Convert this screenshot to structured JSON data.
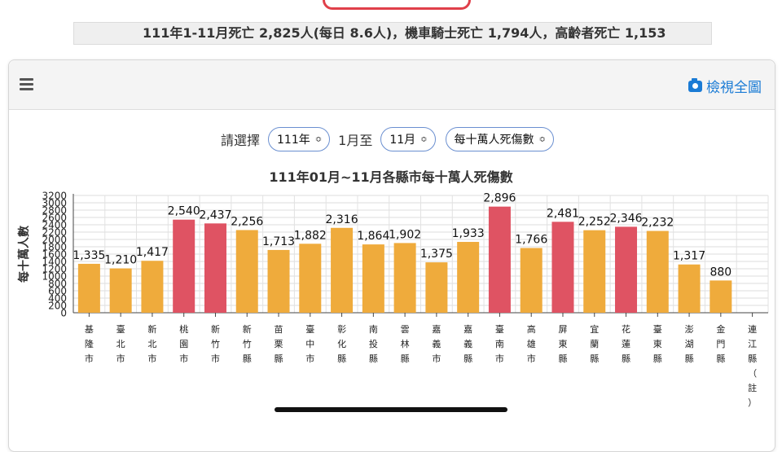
{
  "ticker": {
    "text": "111年1-11月死亡 2,825人(每日 8.6人)，機車騎士死亡 1,794人，高齡者死亡 1,153"
  },
  "header": {
    "view_all_label": "檢視全圖",
    "menu_icon": "menu-icon",
    "camera_icon": "camera-icon"
  },
  "selectors": {
    "prompt": "請選擇",
    "year": "111年",
    "from_month_text": "1月至",
    "to_month": "11月",
    "metric": "每十萬人死傷數"
  },
  "colors": {
    "highlight": "#df5363",
    "normal": "#efab3c",
    "accent": "#1a7bd5"
  },
  "chart_data": {
    "type": "bar",
    "title": "111年01月~11月各縣市每十萬人死傷數",
    "ylabel": "每十萬人數",
    "xlabel": "",
    "ylim": [
      0,
      3200
    ],
    "yticks": [
      0,
      200,
      400,
      600,
      800,
      1000,
      1200,
      1400,
      1600,
      1800,
      2000,
      2200,
      2400,
      2600,
      2800,
      3000,
      3200
    ],
    "grid": true,
    "categories": [
      "基隆市",
      "臺北市",
      "新北市",
      "桃園市",
      "新竹市",
      "新竹縣",
      "苗栗縣",
      "臺中市",
      "彰化縣",
      "南投縣",
      "雲林縣",
      "嘉義市",
      "嘉義縣",
      "臺南市",
      "高雄市",
      "屏東縣",
      "宜蘭縣",
      "花蓮縣",
      "臺東縣",
      "澎湖縣",
      "金門縣",
      "連江縣（註）"
    ],
    "values": [
      1335,
      1210,
      1417,
      2540,
      2437,
      2256,
      1713,
      1882,
      2316,
      1864,
      1902,
      1375,
      1933,
      2896,
      1766,
      2481,
      2252,
      2346,
      2232,
      1317,
      880,
      null
    ],
    "value_labels": [
      "1,335",
      "1,210",
      "1,417",
      "2,540",
      "2,437",
      "2,256",
      "1,713",
      "1,882",
      "2,316",
      "1,864",
      "1,902",
      "1,375",
      "1,933",
      "2,896",
      "1,766",
      "2,481",
      "2,252",
      "2,346",
      "2,232",
      "1,317",
      "880",
      ""
    ],
    "highlighted": [
      false,
      false,
      false,
      true,
      true,
      false,
      false,
      false,
      false,
      false,
      false,
      false,
      false,
      true,
      false,
      true,
      false,
      true,
      false,
      false,
      false,
      false
    ]
  }
}
